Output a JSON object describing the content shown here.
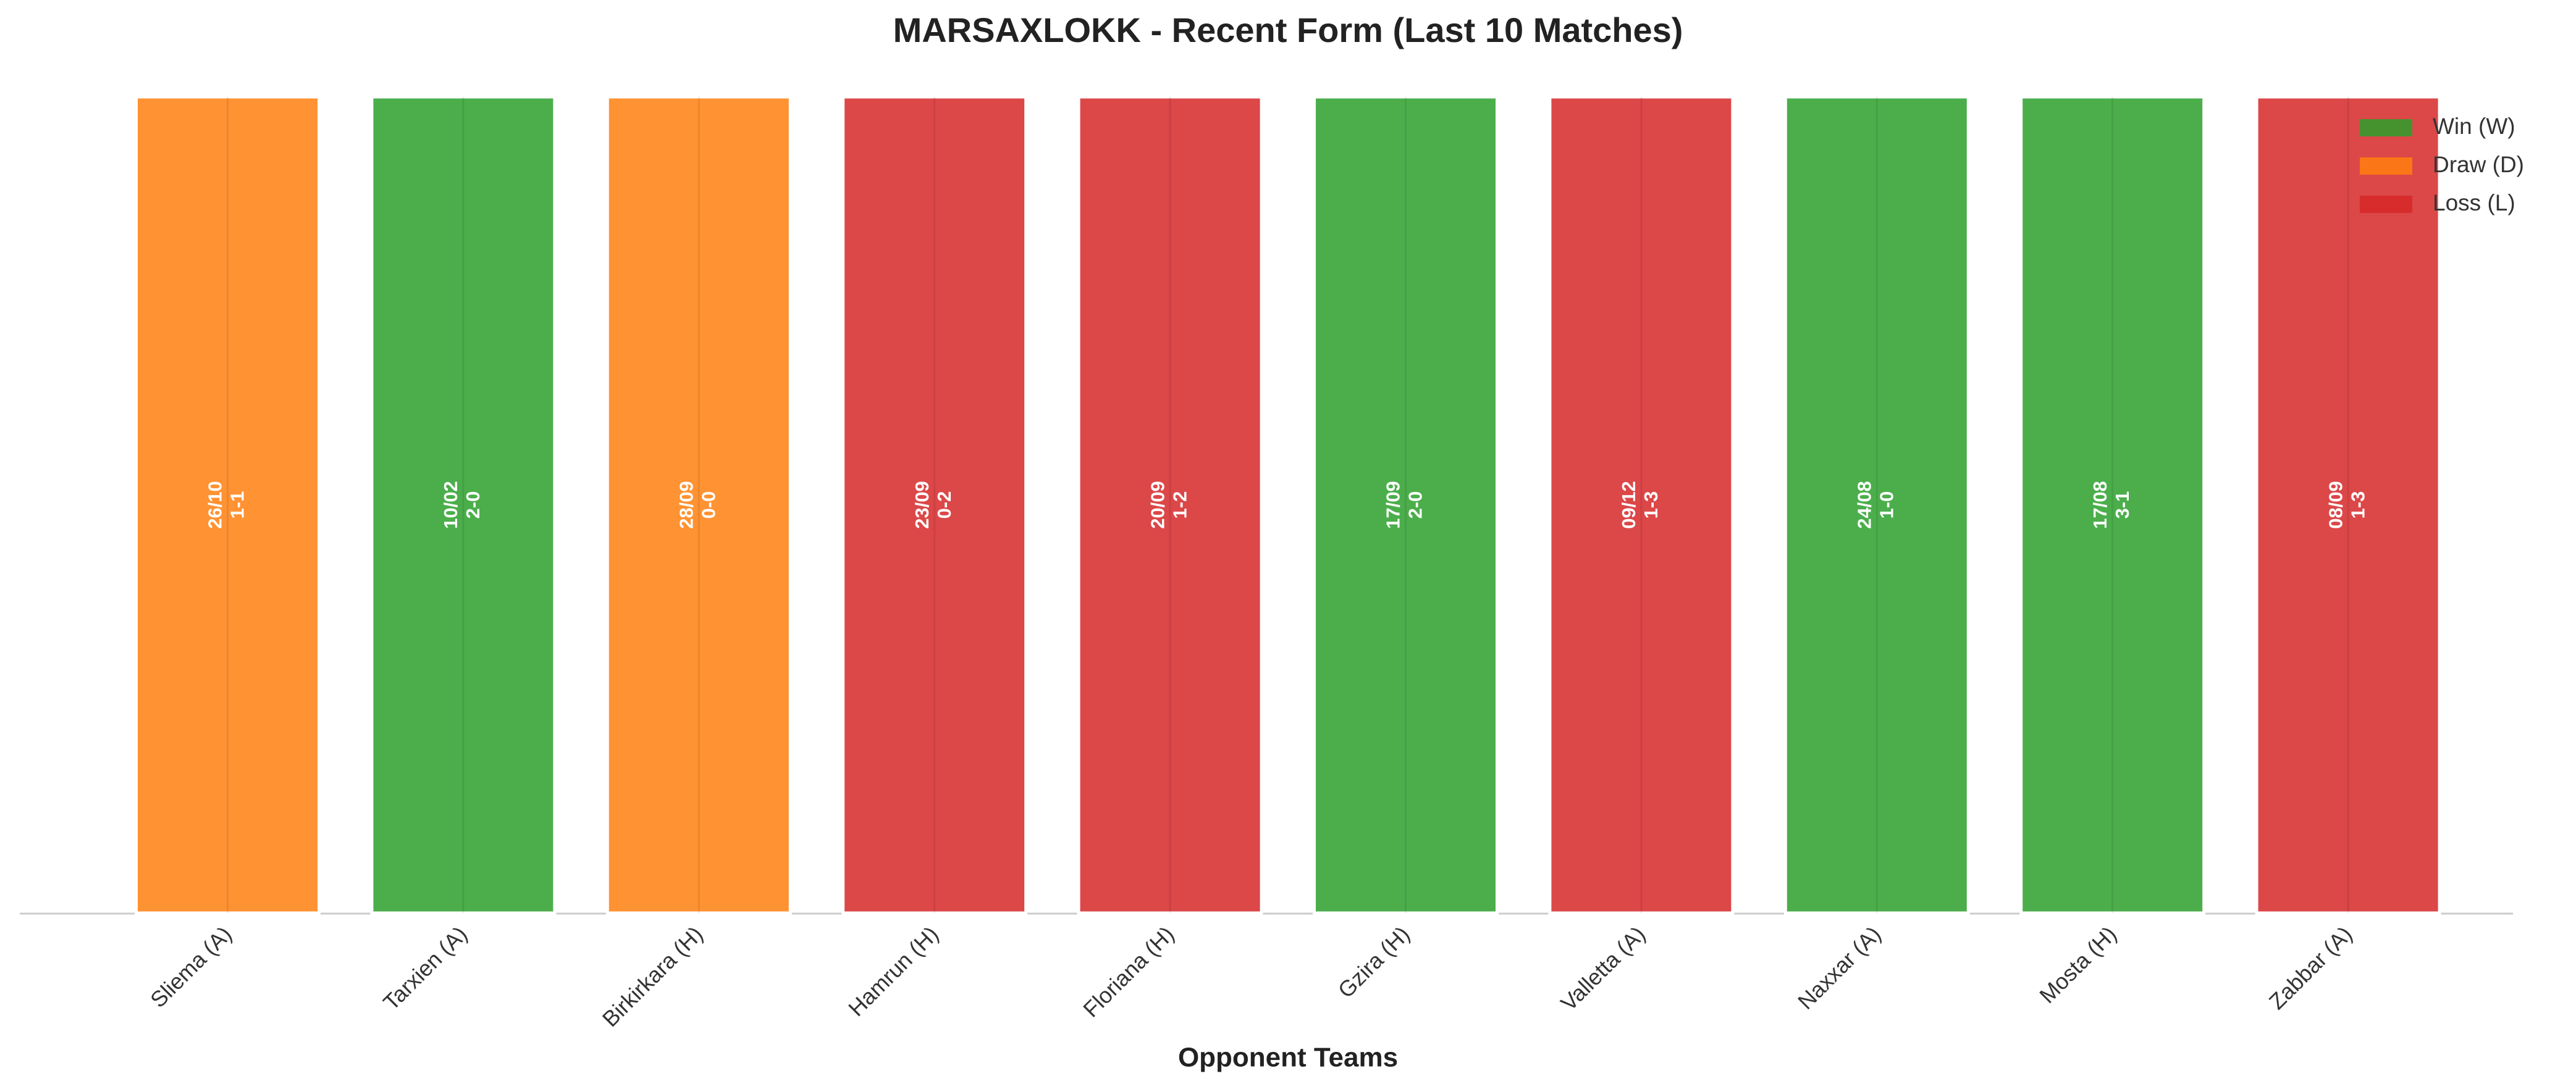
{
  "chart_data": {
    "type": "bar",
    "title": "MARSAXLOKK - Recent Form (Last 10 Matches)",
    "x_label": "Opponent Teams",
    "categories": [
      "Sliema (A)",
      "Tarxien (A)",
      "Birkirkara (H)",
      "Hamrun (H)",
      "Floriana (H)",
      "Gzira (H)",
      "Valletta (A)",
      "Naxxar (A)",
      "Mosta (H)",
      "Zabbar (A)"
    ],
    "results": [
      "D",
      "W",
      "D",
      "L",
      "L",
      "W",
      "L",
      "W",
      "W",
      "L"
    ],
    "dates": [
      "26/10",
      "10/02",
      "28/09",
      "23/09",
      "20/09",
      "17/09",
      "09/12",
      "24/08",
      "17/08",
      "08/09"
    ],
    "scores": [
      "1-1",
      "2-0",
      "0-0",
      "0-2",
      "1-2",
      "2-0",
      "1-3",
      "1-0",
      "3-1",
      "1-3"
    ],
    "values": [
      1,
      1,
      1,
      1,
      1,
      1,
      1,
      1,
      1,
      1
    ],
    "ylim": [
      0,
      1
    ],
    "legend": [
      {
        "name": "Win (W)",
        "code": "W",
        "color": "#2ca02c"
      },
      {
        "name": "Draw (D)",
        "code": "D",
        "color": "#ff7f0e"
      },
      {
        "name": "Loss (L)",
        "code": "L",
        "color": "#d62728"
      }
    ],
    "legend_position": "upper right",
    "grid": true
  }
}
